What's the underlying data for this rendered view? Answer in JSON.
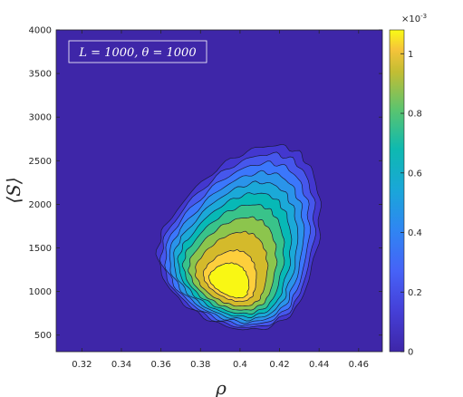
{
  "chart_data": {
    "type": "heatmap",
    "subtype": "filled-contour",
    "title": "",
    "annotation": "L = 1000, θ = 1000",
    "xlabel": "ρ",
    "ylabel": "⟨S⟩",
    "xlim": [
      0.307,
      0.472
    ],
    "ylim": [
      310,
      4000
    ],
    "xticks": [
      "0.32",
      "0.34",
      "0.36",
      "0.38",
      "0.4",
      "0.42",
      "0.44",
      "0.46"
    ],
    "yticks": [
      "500",
      "1000",
      "1500",
      "2000",
      "2500",
      "3000",
      "3500",
      "4000"
    ],
    "colorbar": {
      "range": [
        0,
        1.08
      ],
      "ticks": [
        "0",
        "0.2",
        "0.4",
        "0.6",
        "0.8",
        "1"
      ],
      "exponent_label": "×10",
      "exponent_power": "-3"
    },
    "peak": {
      "x": 0.394,
      "y": 1060,
      "value": 1.08
    },
    "levels": [
      {
        "level": 0.0,
        "color": "#3e26a8"
      },
      {
        "level": 0.1,
        "color": "#4337cf"
      },
      {
        "level": 0.2,
        "color": "#4657ec"
      },
      {
        "level": 0.3,
        "color": "#3b77fc"
      },
      {
        "level": 0.4,
        "color": "#2a94ea"
      },
      {
        "level": 0.5,
        "color": "#1ba9d8"
      },
      {
        "level": 0.6,
        "color": "#07b9b6"
      },
      {
        "level": 0.7,
        "color": "#39c38a"
      },
      {
        "level": 0.8,
        "color": "#8cc54d"
      },
      {
        "level": 0.9,
        "color": "#d4ba2b"
      },
      {
        "level": 1.0,
        "color": "#fdcf3c"
      },
      {
        "level": 1.05,
        "color": "#f9f714"
      }
    ]
  }
}
